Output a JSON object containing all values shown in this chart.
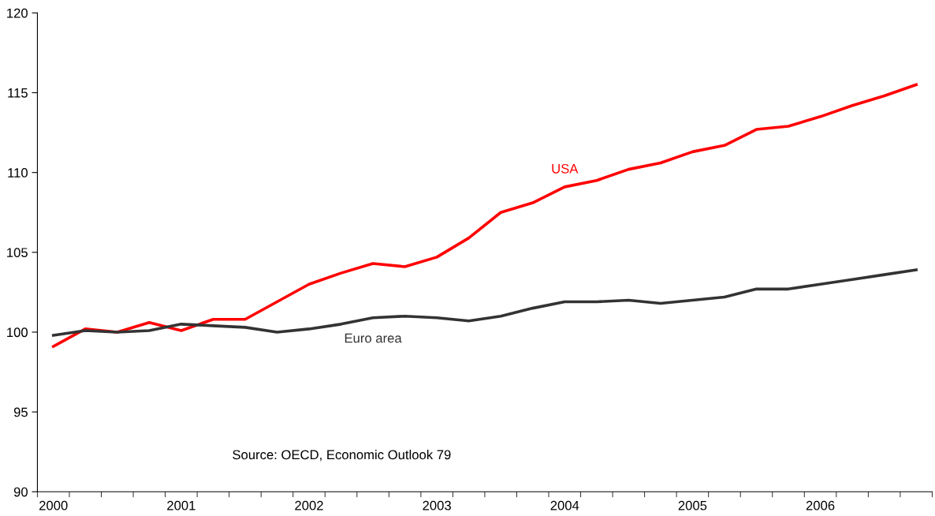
{
  "chart_data": {
    "type": "line",
    "categories": [
      "2000",
      null,
      null,
      null,
      "2001",
      null,
      null,
      null,
      "2002",
      null,
      null,
      null,
      "2003",
      null,
      null,
      null,
      "2004",
      null,
      null,
      null,
      "2005",
      null,
      null,
      null,
      "2006",
      null,
      null,
      null
    ],
    "series": [
      {
        "name": "USA",
        "color": "#ff0000",
        "values": [
          99.1,
          100.2,
          100.0,
          100.6,
          100.1,
          100.8,
          100.8,
          101.9,
          103.0,
          103.7,
          104.3,
          104.1,
          104.7,
          105.9,
          107.5,
          108.1,
          109.1,
          109.5,
          110.2,
          110.6,
          111.3,
          111.7,
          112.7,
          112.9,
          113.5,
          114.2,
          114.8,
          115.5
        ]
      },
      {
        "name": "Euro area",
        "color": "#333333",
        "values": [
          99.8,
          100.1,
          100.0,
          100.1,
          100.5,
          100.4,
          100.3,
          100.0,
          100.2,
          100.5,
          100.9,
          101.0,
          100.9,
          100.7,
          101.0,
          101.5,
          101.9,
          101.9,
          102.0,
          101.8,
          102.0,
          102.2,
          102.7,
          102.7,
          103.0,
          103.3,
          103.6,
          103.9
        ]
      }
    ],
    "ylim": [
      90,
      120
    ],
    "yticks": [
      90,
      95,
      100,
      105,
      110,
      115,
      120
    ],
    "grid": false,
    "legend": false,
    "marker": "none",
    "line_style": "solid",
    "annotations": [
      "Source: OECD, Economic Outlook 79"
    ]
  }
}
